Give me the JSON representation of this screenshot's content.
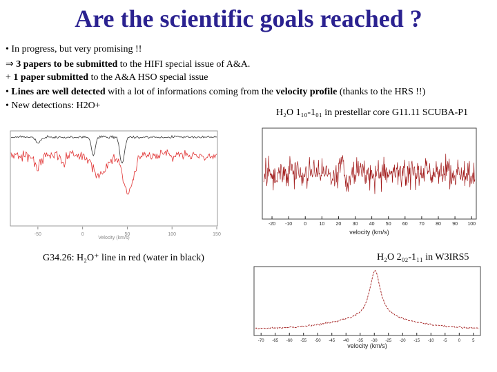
{
  "title": "Are the scientific goals reached ?",
  "bullets": {
    "b1": "• In progress, but very promising !!",
    "b2_pre": "⇒ ",
    "b2_bold": "3 papers to be submitted",
    "b2_post": " to the HIFI special issue of A&A.",
    "b3_pre": "+ ",
    "b3_bold": "1 paper submitted",
    "b3_post": " to the A&A HSO special issue",
    "b4_pre": "• ",
    "b4_bold1": "Lines are well detected",
    "b4_mid": " with a lot of informations coming from the ",
    "b4_bold2": "velocity profile",
    "b4_post": " (thanks to the HRS !!)",
    "b5": "• New detections: H2O+"
  },
  "captions": {
    "top_right": "H₂O 1₁₀-1₀₁ in prestellar core G11.11 SCUBA-P1",
    "left": "G34.26: H₂O⁺ line in red (water in black)",
    "bottom_right": "H₂O 2₀₂-1₁₁ in W3IRS5"
  },
  "chart_data": [
    {
      "type": "line",
      "xlabel": "Velocity (km/s)",
      "xticks": [
        "-50",
        "0",
        "50",
        "100",
        "150"
      ],
      "xlim": [
        -80,
        150
      ],
      "series": [
        {
          "color": "#e03030",
          "values": []
        },
        {
          "color": "#333333",
          "values": []
        }
      ]
    },
    {
      "type": "line",
      "xlabel": "velocity (km/s)",
      "xticks": [
        "-20",
        "-10",
        "0",
        "10",
        "20",
        "30",
        "40",
        "50",
        "60",
        "70",
        "80",
        "90",
        "100"
      ],
      "xlim": [
        -25,
        102
      ],
      "series": [
        {
          "color": "#a01818",
          "values": []
        }
      ]
    },
    {
      "type": "line",
      "xlabel": "velocity (km/s)",
      "xticks": [
        "-70",
        "-65",
        "-60",
        "-55",
        "-50",
        "-45",
        "-40",
        "-35",
        "-30",
        "-25",
        "-20",
        "-15",
        "-10",
        "-5",
        "0",
        "5"
      ],
      "xlim": [
        -72,
        7
      ],
      "series": [
        {
          "color": "#a01818",
          "values": []
        }
      ]
    }
  ]
}
